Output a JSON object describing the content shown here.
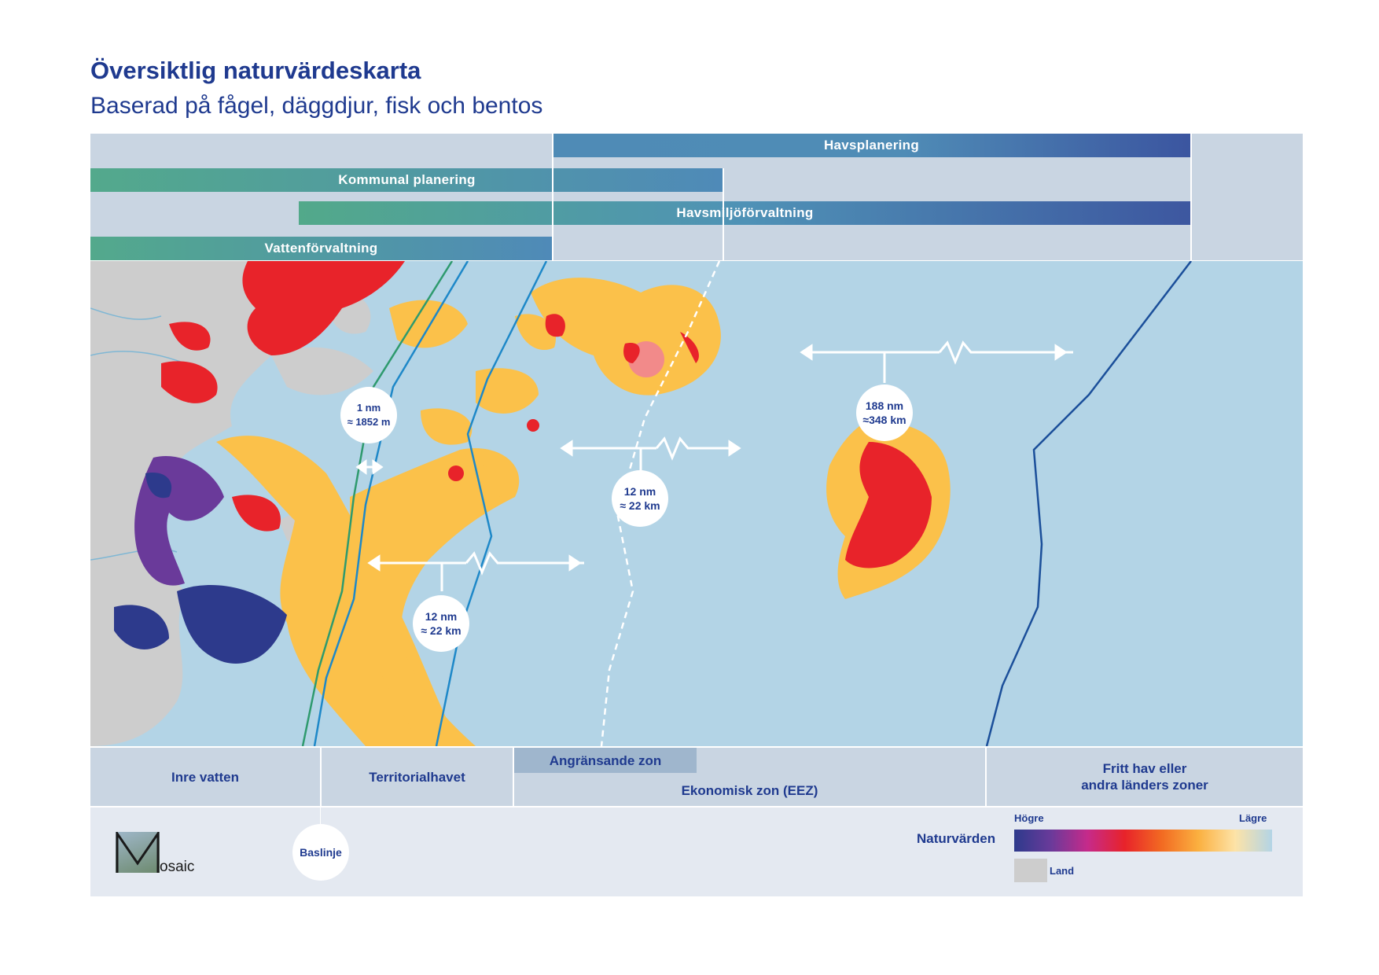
{
  "title": "Översiktlig naturvärdeskarta",
  "subtitle": "Baserad på fågel, däggdjur, fisk och bentos",
  "bars": {
    "havsplanering": "Havsplanering",
    "kommunal": "Kommunal planering",
    "havsmiljo": "Havsmiljöförvaltning",
    "vatten": "Vattenförvaltning"
  },
  "distances": {
    "baseline_1nm": [
      "1 nm",
      "≈ 1852 m"
    ],
    "territorial_12nm": [
      "12 nm",
      "≈ 22 km"
    ],
    "contiguous_12nm": [
      "12 nm",
      "≈ 22 km"
    ],
    "eez_188nm": [
      "188 nm",
      "≈348 km"
    ]
  },
  "zones": {
    "inre": "Inre vatten",
    "territorial": "Territorialhavet",
    "angransande": "Angränsande zon",
    "eez": "Ekonomisk zon (EEZ)",
    "fritt_line1": "Fritt hav eller",
    "fritt_line2": "andra länders zoner"
  },
  "baseline": "Baslinje",
  "logo": "osaic",
  "legend": {
    "title": "Naturvärden",
    "high": "Högre",
    "low": "Lägre",
    "land": "Land",
    "colors": [
      "#2d3a8c",
      "#6a3a9a",
      "#c62a8a",
      "#e8232a",
      "#f26a22",
      "#fbb040",
      "#fde3a7",
      "#b3d4e6"
    ],
    "land_color": "#cdcdcd"
  }
}
